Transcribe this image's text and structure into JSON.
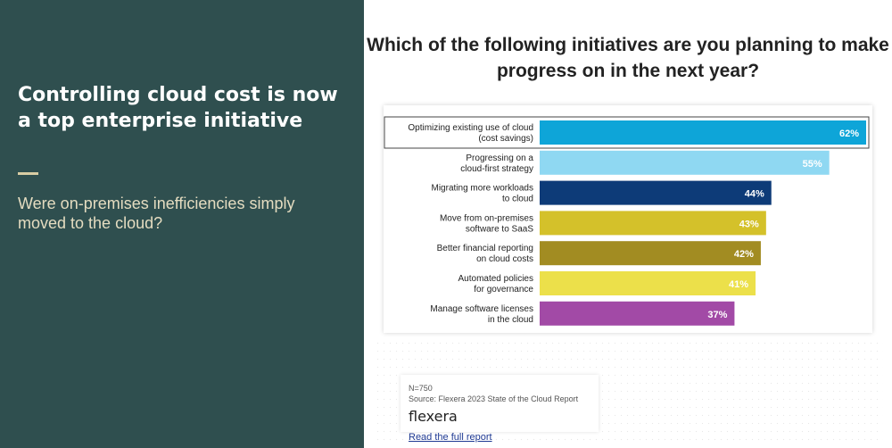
{
  "left_panel": {
    "title": "Controlling cloud cost is now a top enterprise initiative",
    "subtitle": "Were on-premises inefficiencies simply moved to the cloud?",
    "background": "#2f4f4f"
  },
  "question": "Which of the following initiatives are you planning to make progress on in the next year?",
  "chart_data": {
    "type": "bar",
    "orientation": "horizontal",
    "categories": [
      [
        "Optimizing existing use of cloud",
        "(cost savings)"
      ],
      [
        "Progressing on a",
        "cloud-first strategy"
      ],
      [
        "Migrating more workloads",
        "to cloud"
      ],
      [
        "Move from on-premises",
        "software to SaaS"
      ],
      [
        "Better financial reporting",
        "on cloud costs"
      ],
      [
        "Automated policies",
        "for  governance"
      ],
      [
        "Manage software licenses",
        "in the cloud"
      ]
    ],
    "values": [
      62,
      55,
      44,
      43,
      42,
      41,
      37
    ],
    "value_labels": [
      "62%",
      "55%",
      "44%",
      "43%",
      "42%",
      "41%",
      "37%"
    ],
    "colors": [
      "#0ea5d8",
      "#8fd8f2",
      "#0d3b78",
      "#d4c12a",
      "#a28c22",
      "#ece04a",
      "#a24aa6"
    ],
    "highlighted_index": 0,
    "xlim": [
      0,
      62
    ]
  },
  "source": {
    "n": "N=750",
    "source": "Source: Flexera 2023 State of the Cloud Report",
    "logo": "flexera",
    "link": "Read the full report"
  }
}
